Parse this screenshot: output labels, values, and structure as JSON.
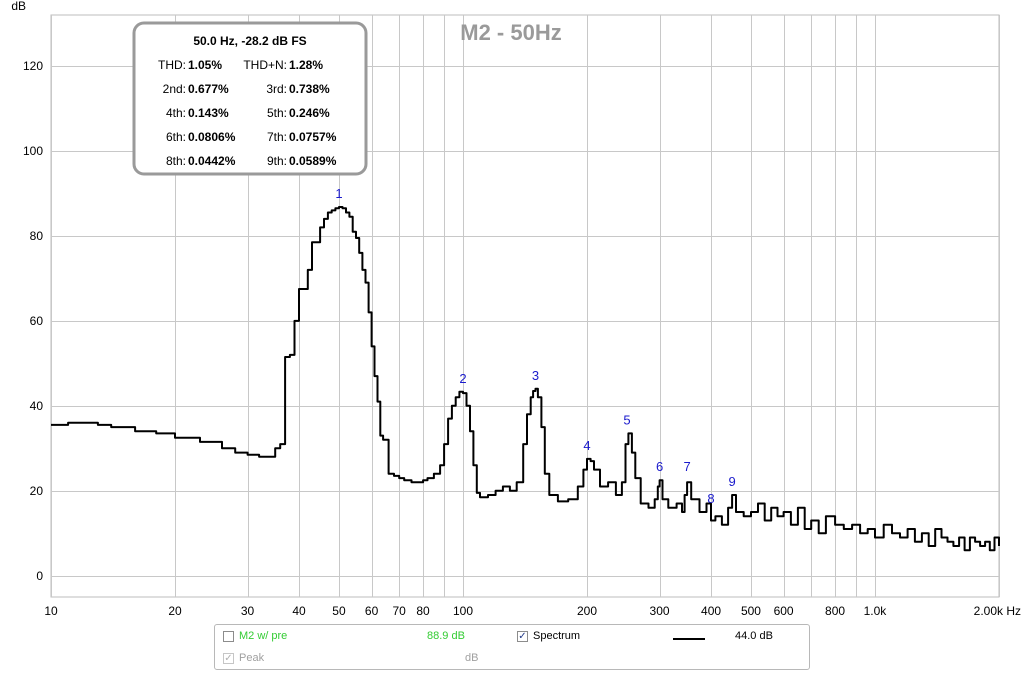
{
  "chart_data": {
    "type": "line",
    "title": "M2 - 50Hz",
    "ylabel": "dB",
    "x_unit_label": "Hz",
    "x_scale": "log",
    "xlim": [
      10,
      2000
    ],
    "ylim": [
      -5,
      132
    ],
    "grid": true,
    "x_ticks": [
      {
        "v": 10,
        "label": "10"
      },
      {
        "v": 20,
        "label": "20"
      },
      {
        "v": 30,
        "label": "30"
      },
      {
        "v": 40,
        "label": "40"
      },
      {
        "v": 50,
        "label": "50"
      },
      {
        "v": 60,
        "label": "60"
      },
      {
        "v": 70,
        "label": "70"
      },
      {
        "v": 80,
        "label": "80"
      },
      {
        "v": 100,
        "label": "100"
      },
      {
        "v": 200,
        "label": "200"
      },
      {
        "v": 300,
        "label": "300"
      },
      {
        "v": 400,
        "label": "400"
      },
      {
        "v": 500,
        "label": "500"
      },
      {
        "v": 600,
        "label": "600"
      },
      {
        "v": 800,
        "label": "800"
      },
      {
        "v": 1000,
        "label": "1.0k"
      },
      {
        "v": 2000,
        "label": "2.00k Hz"
      }
    ],
    "x_minor_grid": [
      90,
      700,
      900
    ],
    "y_ticks": [
      0,
      20,
      40,
      60,
      80,
      100,
      120
    ],
    "series": [
      {
        "name": "Spectrum",
        "color": "#000000",
        "x": [
          10,
          11,
          12,
          13,
          14,
          16,
          18,
          20,
          23,
          26,
          28,
          30,
          32,
          34,
          35,
          36,
          37,
          38,
          39,
          40,
          41,
          42,
          43,
          44,
          45,
          46,
          47,
          48,
          49,
          50,
          51,
          52,
          53,
          54,
          55,
          56,
          57,
          58,
          59,
          60,
          61,
          62,
          63,
          64,
          66,
          68,
          70,
          72,
          75,
          78,
          80,
          82,
          85,
          88,
          90,
          92,
          94,
          96,
          98,
          100,
          102,
          104,
          106,
          108,
          110,
          115,
          120,
          125,
          130,
          135,
          140,
          143,
          146,
          148,
          150,
          152,
          155,
          158,
          162,
          170,
          180,
          190,
          196,
          200,
          204,
          208,
          215,
          225,
          235,
          243,
          248,
          252,
          257,
          262,
          270,
          282,
          292,
          297,
          300,
          305,
          315,
          330,
          340,
          345,
          350,
          358,
          375,
          390,
          400,
          410,
          425,
          440,
          450,
          460,
          480,
          500,
          520,
          540,
          560,
          580,
          600,
          625,
          650,
          675,
          700,
          730,
          760,
          800,
          840,
          880,
          920,
          960,
          1000,
          1050,
          1100,
          1150,
          1200,
          1250,
          1300,
          1350,
          1400,
          1450,
          1500,
          1550,
          1600,
          1650,
          1700,
          1750,
          1800,
          1850,
          1900,
          1950,
          2000
        ],
        "y": [
          35.5,
          36,
          36,
          35.5,
          35,
          34,
          33.5,
          32.5,
          31.5,
          30,
          29,
          28.5,
          28,
          28,
          30,
          31,
          51.5,
          52,
          60,
          67.5,
          67.5,
          72,
          78.5,
          78.5,
          82,
          84,
          85.5,
          86,
          86.5,
          86.8,
          86.5,
          85.5,
          84.5,
          81,
          79.5,
          76,
          72,
          69,
          62,
          54,
          47,
          41,
          33,
          32,
          24,
          23.5,
          23,
          22.5,
          22,
          22,
          22.5,
          23,
          24,
          26,
          31,
          37,
          40,
          42,
          43.3,
          43,
          40,
          34,
          26,
          19.5,
          18.5,
          19,
          20,
          21,
          20,
          22,
          31,
          38,
          42,
          43.5,
          44,
          42,
          35,
          24,
          19,
          17.5,
          18,
          21,
          25,
          27.5,
          27,
          25,
          21,
          22,
          19,
          22,
          31,
          33.5,
          29,
          23,
          17,
          16,
          18,
          21,
          22.5,
          18,
          16,
          17,
          15,
          19,
          22,
          18,
          15,
          17,
          13,
          14,
          12,
          16,
          19,
          15,
          14,
          15,
          17,
          13,
          16,
          14,
          15,
          12,
          16,
          11,
          13,
          10,
          14,
          12,
          11,
          12,
          10,
          11,
          9,
          12,
          10,
          9,
          11,
          8,
          10,
          7,
          11,
          9,
          8,
          7,
          9,
          6,
          9,
          8,
          7,
          8,
          6,
          9,
          7
        ]
      }
    ],
    "harmonic_markers": [
      {
        "label": "1",
        "x": 50,
        "y": 86.8
      },
      {
        "label": "2",
        "x": 100,
        "y": 43.3
      },
      {
        "label": "3",
        "x": 150,
        "y": 44
      },
      {
        "label": "4",
        "x": 200,
        "y": 27.5
      },
      {
        "label": "5",
        "x": 250,
        "y": 33.5
      },
      {
        "label": "6",
        "x": 300,
        "y": 22.5
      },
      {
        "label": "7",
        "x": 350,
        "y": 22.5
      },
      {
        "label": "8",
        "x": 400,
        "y": 15
      },
      {
        "label": "9",
        "x": 450,
        "y": 19
      }
    ],
    "distortion_overlay": {
      "header": "50.0 Hz, -28.2 dB FS",
      "rows": [
        [
          {
            "label": "THD:",
            "value": "1.05%"
          },
          {
            "label": "THD+N:",
            "value": "1.28%"
          }
        ],
        [
          {
            "label": "2nd:",
            "value": "0.677%"
          },
          {
            "label": "3rd:",
            "value": "0.738%"
          }
        ],
        [
          {
            "label": "4th:",
            "value": "0.143%"
          },
          {
            "label": "5th:",
            "value": "0.246%"
          }
        ],
        [
          {
            "label": "6th:",
            "value": "0.0806%"
          },
          {
            "label": "7th:",
            "value": "0.0757%"
          }
        ],
        [
          {
            "label": "8th:",
            "value": "0.0442%"
          },
          {
            "label": "9th:",
            "value": "0.0589%"
          }
        ]
      ]
    }
  },
  "legend": {
    "row1": [
      {
        "checked": false,
        "mark": "",
        "label": "M2 w/ pre",
        "value": "88.9 dB",
        "label_color": "#33cc33",
        "value_color": "#33cc33"
      },
      {
        "checked": true,
        "mark": "✓",
        "label": "Spectrum",
        "value": "44.0 dB",
        "label_color": "#000000",
        "value_color": "#000000"
      }
    ],
    "row2": [
      {
        "checked": true,
        "mark": "✓",
        "label": "Peak",
        "value": "dB",
        "label_color": "#a0a0a0",
        "value_color": "#a0a0a0"
      }
    ]
  }
}
